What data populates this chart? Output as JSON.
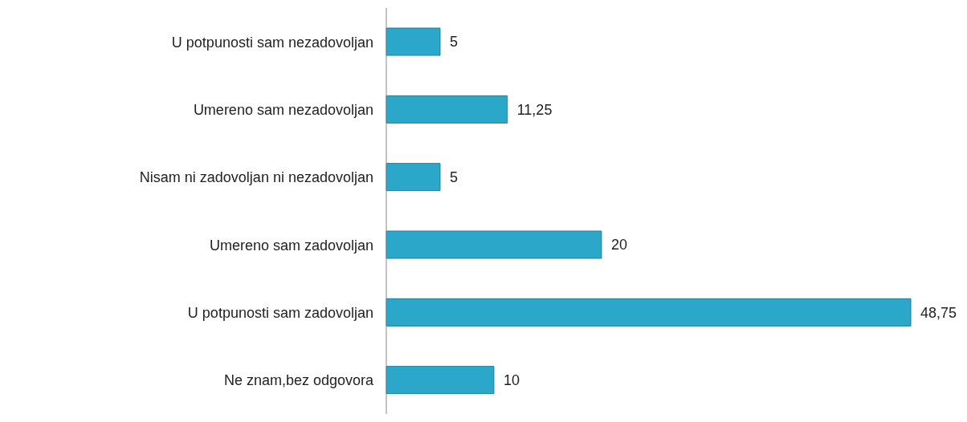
{
  "chart_data": {
    "type": "bar",
    "orientation": "horizontal",
    "categories": [
      "U potpunosti sam nezadovoljan",
      "Umereno sam nezadovoljan",
      "Nisam ni zadovoljan ni nezadovoljan",
      "Umereno sam zadovoljan",
      "U potpunosti sam zadovoljan",
      "Ne znam,bez odgovora"
    ],
    "values": [
      5,
      11.25,
      5,
      20,
      48.75,
      10
    ],
    "value_labels": [
      "5",
      "11,25",
      "5",
      "20",
      "48,75",
      "10"
    ],
    "color": "#2ba8c9"
  }
}
